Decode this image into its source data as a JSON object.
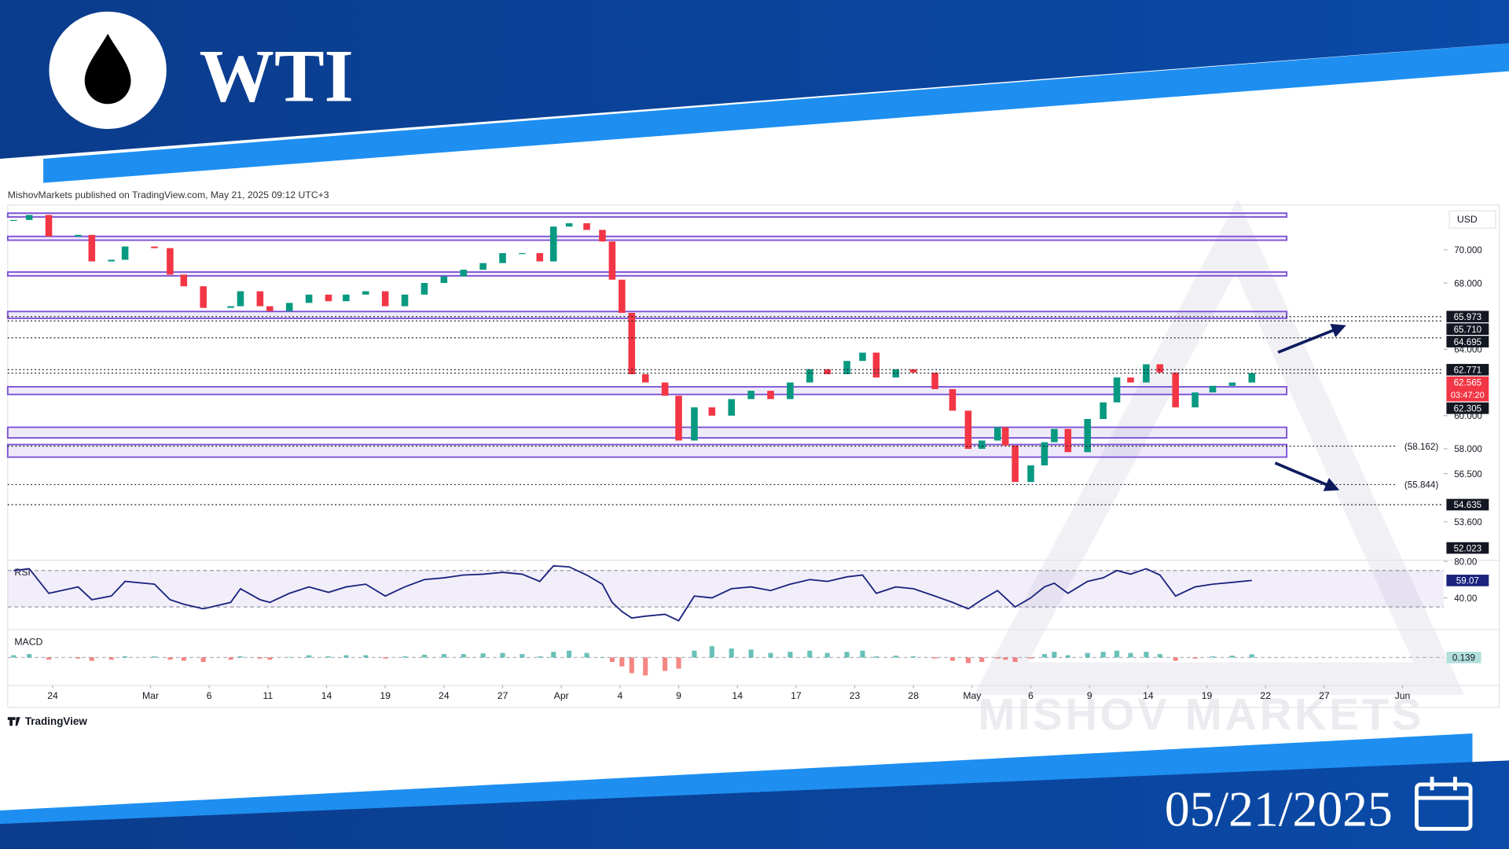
{
  "header": {
    "title": "WTI",
    "date": "05/21/2025"
  },
  "attribution": "MishovMarkets published on TradingView.com, May 21, 2025 09:12 UTC+3",
  "footer_brand": "TradingView",
  "watermark": "MISHOV MARKETS",
  "chart_data": {
    "type": "candlestick",
    "currency": "USD",
    "x": [
      -2,
      -1.2,
      -0.2,
      1.3,
      2,
      3,
      3.7,
      5.2,
      6,
      6.7,
      7.7,
      9.1,
      9.6,
      10.6,
      11.1,
      12.1,
      13.1,
      14.1,
      15,
      16,
      17,
      18,
      19,
      20,
      21,
      22,
      23,
      24,
      24.9,
      25.6,
      26.4,
      27.3,
      28.1,
      28.6,
      29.1,
      29.6,
      30.3,
      31.3,
      32,
      32.8,
      33.7,
      34.7,
      35.7,
      36.7,
      37.7,
      38.7,
      39.6,
      40.6,
      41.4,
      42.1,
      43.1,
      44,
      45.1,
      46,
      46.8,
      47.5,
      48.3,
      48.7,
      49.2,
      50,
      50.7,
      51.2,
      51.9,
      52.9,
      53.7,
      54.4,
      55.1,
      55.9,
      56.6,
      57.4,
      58.4,
      59.3,
      60.3,
      61.3
    ],
    "values": [
      71.8,
      72.1,
      70.8,
      70.9,
      69.3,
      69.4,
      70.2,
      70.1,
      68.5,
      67.8,
      66.5,
      66.6,
      67.5,
      66.6,
      66.3,
      66.8,
      67.3,
      66.9,
      67.3,
      67.5,
      66.6,
      67.3,
      68.0,
      68.4,
      68.8,
      69.2,
      69.8,
      69.8,
      69.3,
      71.4,
      71.6,
      71.2,
      70.5,
      68.2,
      66.2,
      62.5,
      62.0,
      61.2,
      58.5,
      60.5,
      60.0,
      61.0,
      61.5,
      61.0,
      62.0,
      62.8,
      62.5,
      63.3,
      63.8,
      62.3,
      62.8,
      62.6,
      61.6,
      60.3,
      58.0,
      58.5,
      59.3,
      58.2,
      56.0,
      57.0,
      58.4,
      59.2,
      57.8,
      59.8,
      60.8,
      62.3,
      62.0,
      63.1,
      62.6,
      60.5,
      61.4,
      61.8,
      62.0,
      62.565
    ],
    "up_color": "#089981",
    "down_color": "#f23645",
    "xlim": [
      -2.3,
      71.1
    ],
    "xticks": [
      {
        "value": 0,
        "label": "24"
      },
      {
        "value": 5,
        "label": "Mar"
      },
      {
        "value": 8,
        "label": "6"
      },
      {
        "value": 11,
        "label": "11"
      },
      {
        "value": 14,
        "label": "14"
      },
      {
        "value": 17,
        "label": "19"
      },
      {
        "value": 20,
        "label": "24"
      },
      {
        "value": 23,
        "label": "27"
      },
      {
        "value": 26,
        "label": "Apr"
      },
      {
        "value": 29,
        "label": "4"
      },
      {
        "value": 32,
        "label": "9"
      },
      {
        "value": 35,
        "label": "14"
      },
      {
        "value": 38,
        "label": "17"
      },
      {
        "value": 41,
        "label": "23"
      },
      {
        "value": 44,
        "label": "28"
      },
      {
        "value": 47,
        "label": "May"
      },
      {
        "value": 50,
        "label": "6"
      },
      {
        "value": 53,
        "label": "9"
      },
      {
        "value": 56,
        "label": "14"
      },
      {
        "value": 59,
        "label": "19"
      },
      {
        "value": 62,
        "label": "22"
      },
      {
        "value": 65,
        "label": "27"
      },
      {
        "value": 69,
        "label": "Jun"
      }
    ],
    "ylim": [
      51.4,
      72.7
    ],
    "yticks": [
      {
        "value": 70,
        "label": "70.000"
      },
      {
        "value": 68,
        "label": "68.000"
      },
      {
        "value": 64,
        "label": "64.000"
      },
      {
        "value": 60,
        "label": "60.000"
      },
      {
        "value": 58,
        "label": "58.000"
      },
      {
        "value": 56.5,
        "label": "56.500"
      },
      {
        "value": 53.6,
        "label": "53.600"
      }
    ],
    "zones": [
      [
        71.98,
        72.21
      ],
      [
        70.58,
        70.81
      ],
      [
        68.43,
        68.66
      ],
      [
        65.87,
        66.28
      ],
      [
        61.28,
        61.74
      ],
      [
        58.66,
        59.3
      ],
      [
        57.5,
        58.26
      ]
    ],
    "zone_color": "#7b4fd6",
    "levels": [
      {
        "value": 65.973,
        "box": "dark",
        "line": true
      },
      {
        "value": 65.71,
        "label": "65.710",
        "box": "dark",
        "line": true
      },
      {
        "value": 64.695,
        "box": "dark",
        "line": true
      },
      {
        "value": 62.771,
        "box": "dark",
        "line": true
      },
      {
        "value": 62.565,
        "box": "red",
        "countdown": "03:47:20",
        "line": true
      },
      {
        "value": 62.305,
        "box": "dark",
        "line": false
      },
      {
        "value": 58.162,
        "label": "(58.162)",
        "box": "none",
        "line": true
      },
      {
        "value": 55.844,
        "label": "(55.844)",
        "box": "none",
        "line": true
      },
      {
        "value": 54.635,
        "box": "dark",
        "line": true
      },
      {
        "value": 52.023,
        "box": "dark",
        "line": false
      }
    ],
    "rsi": {
      "label": "RSI",
      "color": "#1a237e",
      "ylim": [
        7.4,
        80.2
      ],
      "yticks": [
        {
          "value": 80,
          "label": "80.00"
        },
        {
          "value": 40,
          "label": "40.00"
        }
      ],
      "band": [
        30,
        70
      ],
      "values": [
        70,
        72,
        45,
        52,
        38,
        42,
        58,
        55,
        38,
        33,
        28,
        35,
        50,
        38,
        35,
        45,
        52,
        46,
        52,
        55,
        42,
        52,
        60,
        62,
        65,
        66,
        68,
        66,
        58,
        75,
        74,
        65,
        55,
        35,
        25,
        18,
        20,
        22,
        15,
        42,
        40,
        50,
        52,
        48,
        55,
        60,
        58,
        63,
        65,
        45,
        52,
        50,
        42,
        35,
        28,
        38,
        48,
        40,
        30,
        40,
        52,
        56,
        45,
        58,
        62,
        70,
        66,
        72,
        65,
        42,
        52,
        55,
        57,
        59.07
      ]
    },
    "macd": {
      "label": "MACD",
      "ylim": [
        -1.2,
        1.2
      ],
      "values": [
        0.1,
        0.15,
        -0.1,
        -0.05,
        -0.15,
        -0.1,
        0.05,
        0.05,
        -0.1,
        -0.15,
        -0.2,
        -0.1,
        0.05,
        -0.05,
        -0.1,
        0.02,
        0.1,
        0.05,
        0.1,
        0.1,
        -0.05,
        0.05,
        0.12,
        0.15,
        0.15,
        0.18,
        0.2,
        0.15,
        0.05,
        0.25,
        0.3,
        0.2,
        0,
        -0.2,
        -0.4,
        -0.7,
        -0.8,
        -0.6,
        -0.5,
        0.3,
        0.5,
        0.4,
        0.35,
        0.2,
        0.25,
        0.3,
        0.2,
        0.25,
        0.3,
        0.05,
        0.08,
        0.05,
        -0.05,
        -0.15,
        -0.25,
        -0.2,
        -0.05,
        -0.1,
        -0.2,
        -0.05,
        0.15,
        0.25,
        0.1,
        0.2,
        0.25,
        0.3,
        0.2,
        0.25,
        0.15,
        -0.15,
        -0.05,
        0.05,
        0.08,
        0.139
      ]
    }
  }
}
